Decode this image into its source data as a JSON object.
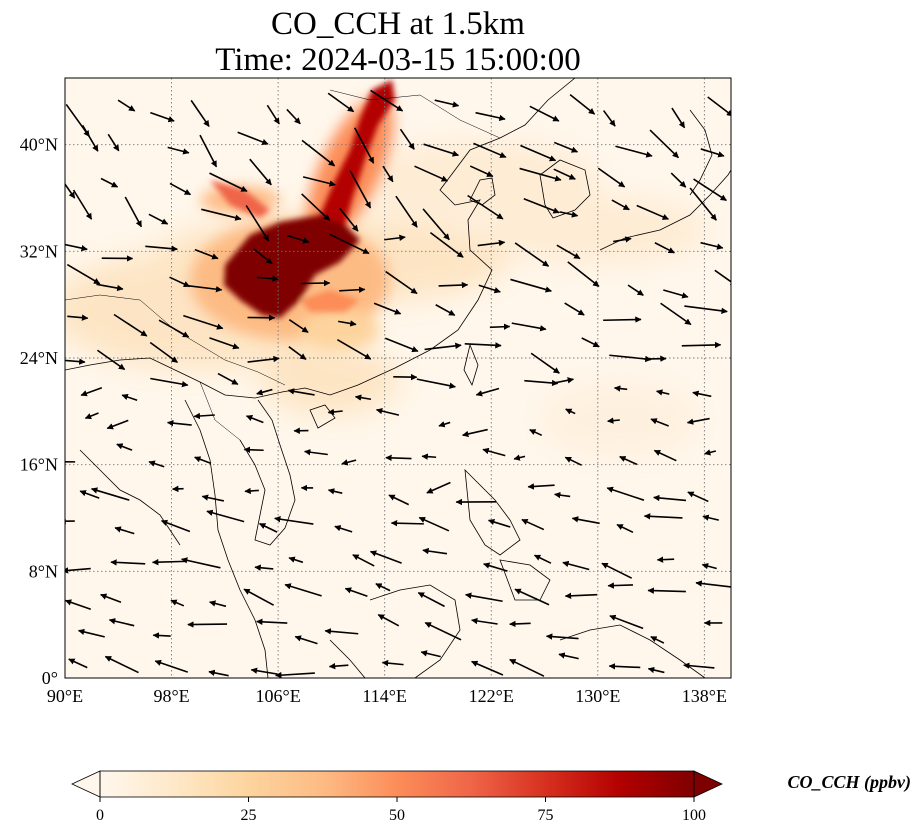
{
  "title_line1": "CO_CCH at 1.5km",
  "title_line2": "Time: 2024-03-15 15:00:00",
  "map": {
    "lon_range": [
      90,
      140
    ],
    "lat_range": [
      0,
      45
    ],
    "lon_ticks": [
      90,
      98,
      106,
      114,
      122,
      130,
      138
    ],
    "lon_tick_labels": [
      "90°E",
      "98°E",
      "106°E",
      "114°E",
      "122°E",
      "130°E",
      "138°E"
    ],
    "lat_ticks": [
      0,
      8,
      16,
      24,
      32,
      40
    ],
    "lat_tick_labels": [
      "0°",
      "8°N",
      "16°N",
      "24°N",
      "32°N",
      "40°N"
    ],
    "gridlines": true,
    "gridline_style": "dotted",
    "features": [
      "coastlines",
      "country-borders",
      "wind-vectors"
    ]
  },
  "colorbar": {
    "colormap": "OrRd",
    "label": "CO_CCH (ppbv)",
    "min": 0,
    "max": 100,
    "ticks": [
      0,
      25,
      50,
      75,
      100
    ],
    "tick_labels": [
      "0",
      "25",
      "50",
      "75",
      "100"
    ],
    "extend": "both",
    "colors": [
      "#fff7ec",
      "#fee8c8",
      "#fdd49e",
      "#fdbb84",
      "#fc8d59",
      "#ef6548",
      "#d7301f",
      "#b30000",
      "#7f0000"
    ]
  }
}
